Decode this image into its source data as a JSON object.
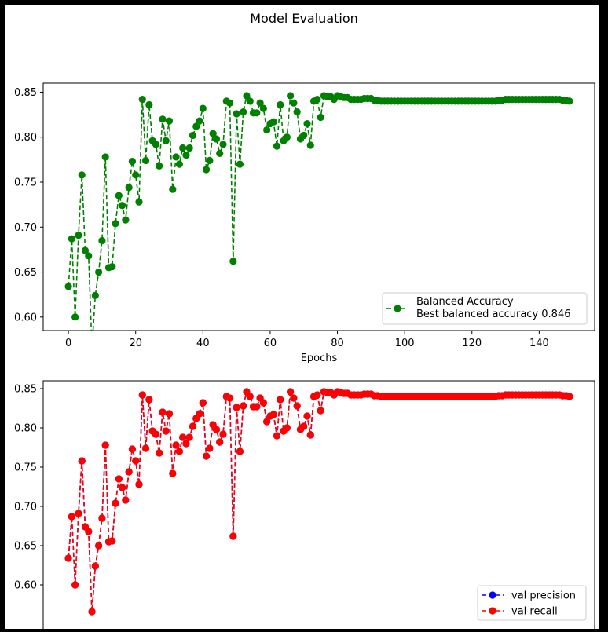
{
  "figure": {
    "title": "Model Evaluation"
  },
  "chart_data": [
    {
      "type": "line",
      "xlabel": "Epochs",
      "ylabel": "",
      "xlim": [
        -7.5,
        156.5
      ],
      "ylim": [
        0.585,
        0.86
      ],
      "xticks": [
        0,
        20,
        40,
        60,
        80,
        100,
        120,
        140
      ],
      "yticks": [
        0.6,
        0.65,
        0.7,
        0.75,
        0.8,
        0.85
      ],
      "grid": false,
      "legend": {
        "placement": "lower-right",
        "entries": [
          "Balanced Accuracy",
          "Best balanced accuracy 0.846"
        ]
      },
      "series": [
        {
          "name": "Balanced Accuracy",
          "color": "#008000",
          "linestyle": "dashed",
          "marker": "circle",
          "x": [
            0,
            1,
            2,
            3,
            4,
            5,
            6,
            7,
            8,
            9,
            10,
            11,
            12,
            13,
            14,
            15,
            16,
            17,
            18,
            19,
            20,
            21,
            22,
            23,
            24,
            25,
            26,
            27,
            28,
            29,
            30,
            31,
            32,
            33,
            34,
            35,
            36,
            37,
            38,
            39,
            40,
            41,
            42,
            43,
            44,
            45,
            46,
            47,
            48,
            49,
            50,
            51,
            52,
            53,
            54,
            55,
            56,
            57,
            58,
            59,
            60,
            61,
            62,
            63,
            64,
            65,
            66,
            67,
            68,
            69,
            70,
            71,
            72,
            73,
            74,
            75,
            76,
            77,
            78,
            79,
            80,
            81,
            82,
            83,
            84,
            85,
            86,
            87,
            88,
            89,
            90,
            91,
            92,
            93,
            94,
            95,
            96,
            97,
            98,
            99,
            100,
            101,
            102,
            103,
            104,
            105,
            106,
            107,
            108,
            109,
            110,
            111,
            112,
            113,
            114,
            115,
            116,
            117,
            118,
            119,
            120,
            121,
            122,
            123,
            124,
            125,
            126,
            127,
            128,
            129,
            130,
            131,
            132,
            133,
            134,
            135,
            136,
            137,
            138,
            139,
            140,
            141,
            142,
            143,
            144,
            145,
            146,
            147,
            148,
            149
          ],
          "values": [
            0.634,
            0.687,
            0.6,
            0.691,
            0.758,
            0.674,
            0.668,
            0.566,
            0.624,
            0.65,
            0.685,
            0.778,
            0.655,
            0.656,
            0.704,
            0.735,
            0.724,
            0.708,
            0.744,
            0.773,
            0.758,
            0.728,
            0.842,
            0.774,
            0.836,
            0.796,
            0.792,
            0.768,
            0.82,
            0.796,
            0.818,
            0.742,
            0.778,
            0.77,
            0.788,
            0.78,
            0.788,
            0.802,
            0.812,
            0.818,
            0.832,
            0.764,
            0.774,
            0.804,
            0.798,
            0.782,
            0.792,
            0.84,
            0.838,
            0.662,
            0.826,
            0.77,
            0.828,
            0.846,
            0.84,
            0.827,
            0.827,
            0.838,
            0.832,
            0.808,
            0.815,
            0.817,
            0.79,
            0.836,
            0.796,
            0.8,
            0.846,
            0.838,
            0.828,
            0.798,
            0.802,
            0.815,
            0.791,
            0.84,
            0.842,
            0.822,
            0.846,
            0.845,
            0.845,
            0.842,
            0.846,
            0.845,
            0.844,
            0.844,
            0.842,
            0.842,
            0.842,
            0.842,
            0.843,
            0.843,
            0.843,
            0.841,
            0.841,
            0.84,
            0.84,
            0.84,
            0.84,
            0.84,
            0.84,
            0.84,
            0.84,
            0.84,
            0.84,
            0.84,
            0.84,
            0.84,
            0.84,
            0.84,
            0.84,
            0.84,
            0.84,
            0.84,
            0.84,
            0.84,
            0.84,
            0.84,
            0.84,
            0.84,
            0.84,
            0.84,
            0.84,
            0.84,
            0.84,
            0.84,
            0.84,
            0.84,
            0.84,
            0.84,
            0.841,
            0.841,
            0.842,
            0.842,
            0.842,
            0.842,
            0.842,
            0.842,
            0.842,
            0.842,
            0.842,
            0.842,
            0.842,
            0.842,
            0.842,
            0.842,
            0.842,
            0.842,
            0.842,
            0.841,
            0.841,
            0.84
          ]
        }
      ]
    },
    {
      "type": "line",
      "xlabel": "",
      "ylabel": "",
      "xlim": [
        -7.5,
        156.5
      ],
      "ylim": [
        0.54,
        0.86
      ],
      "yticks": [
        0.6,
        0.65,
        0.7,
        0.75,
        0.8,
        0.85
      ],
      "grid": false,
      "legend": {
        "placement": "lower-right",
        "entries": [
          "val precision",
          "val recall"
        ]
      },
      "series": [
        {
          "name": "val precision",
          "color": "#0000ff",
          "linestyle": "dashed",
          "marker": "circle",
          "same_as_series": "val recall"
        },
        {
          "name": "val recall",
          "color": "#ff0000",
          "linestyle": "dashed",
          "marker": "circle",
          "same_as_series": "Balanced Accuracy"
        }
      ]
    }
  ]
}
